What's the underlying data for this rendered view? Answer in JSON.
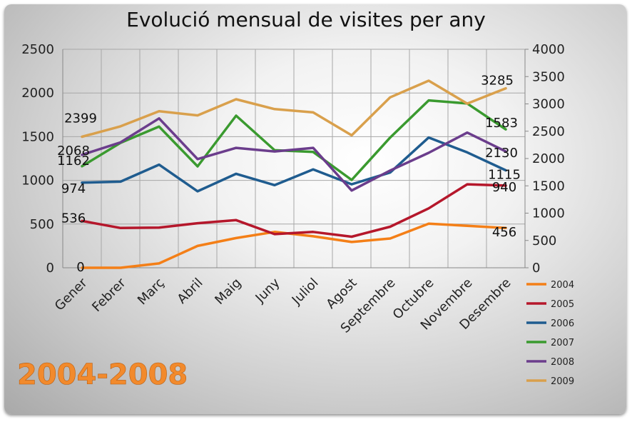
{
  "chart_data": {
    "type": "line",
    "title": "Evolució mensual de visites per any",
    "categories": [
      "Gener",
      "Febrer",
      "Març",
      "Abril",
      "Maig",
      "Juny",
      "Juliol",
      "Agost",
      "Septembre",
      "Octubre",
      "Novembre",
      "Desembre"
    ],
    "ylim": [
      0,
      2500
    ],
    "yticks": [
      "0",
      "500",
      "1000",
      "1500",
      "2000",
      "2500"
    ],
    "y2lim": [
      0,
      4000
    ],
    "y2ticks": [
      "0",
      "500",
      "1000",
      "1500",
      "2000",
      "2500",
      "3000",
      "3500",
      "4000"
    ],
    "grid": true,
    "legend_position": "right",
    "series": [
      {
        "name": "2004",
        "color": "#f47f17",
        "axis": "left",
        "values": [
          0,
          0,
          50,
          250,
          340,
          410,
          360,
          295,
          335,
          505,
          480,
          456
        ],
        "labels": {
          "0": "0",
          "11": "456"
        }
      },
      {
        "name": "2005",
        "color": "#b5172b",
        "axis": "left",
        "values": [
          536,
          455,
          460,
          510,
          545,
          385,
          410,
          355,
          470,
          680,
          955,
          940
        ],
        "labels": {
          "0": "536",
          "11": "940"
        }
      },
      {
        "name": "2006",
        "color": "#1f5c8f",
        "axis": "left",
        "values": [
          974,
          985,
          1180,
          875,
          1075,
          945,
          1125,
          955,
          1090,
          1490,
          1320,
          1115
        ],
        "labels": {
          "0": "974",
          "11": "1115"
        }
      },
      {
        "name": "2007",
        "color": "#3a9a2f",
        "axis": "left",
        "values": [
          1162,
          1430,
          1615,
          1160,
          1740,
          1345,
          1325,
          1005,
          1490,
          1915,
          1880,
          1583
        ],
        "labels": {
          "0": "1162",
          "11": "1583"
        }
      },
      {
        "name": "2008",
        "color": "#6b3d8c",
        "axis": "right",
        "values": [
          2068,
          2295,
          2735,
          1990,
          2195,
          2130,
          2195,
          1415,
          1780,
          2105,
          2475,
          2130
        ],
        "labels": {
          "0": "2068",
          "11": "2130"
        }
      },
      {
        "name": "2009",
        "color": "#d9a04c",
        "axis": "right",
        "values": [
          2399,
          2590,
          2865,
          2790,
          3085,
          2905,
          2845,
          2425,
          3120,
          3425,
          3005,
          3285
        ],
        "labels": {
          "0": "2399",
          "11": "3285"
        }
      }
    ]
  },
  "overlay_label": "2004-2008"
}
